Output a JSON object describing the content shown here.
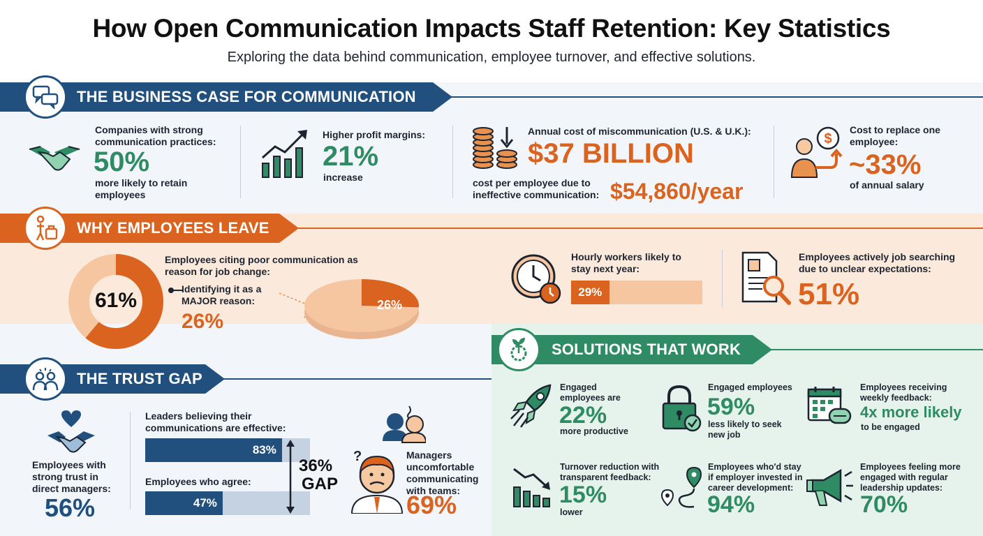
{
  "header": {
    "title": "How Open Communication Impacts Staff Retention: Key Statistics",
    "subtitle": "Exploring the data behind communication, employee turnover, and effective solutions."
  },
  "colors": {
    "navy": "#21507e",
    "orange": "#d9631f",
    "green": "#2e8b64",
    "peach": "#fbeadc",
    "mint": "#e6f3ec"
  },
  "business_case": {
    "heading": "THE BUSINESS CASE FOR COMMUNICATION",
    "icon": "chat-bubbles-icon",
    "retain": {
      "label": "Companies with strong communication practices:",
      "value": "50%",
      "note": "more likely to retain employees",
      "icon": "handshake-icon"
    },
    "profit": {
      "label": "Higher profit margins:",
      "value": "21%",
      "note": "increase",
      "icon": "growth-chart-icon"
    },
    "miscomm": {
      "label": "Annual cost of miscommunication (U.S. & U.K.):",
      "value": "$37 BILLION",
      "per_label": "cost per employee due to ineffective communication:",
      "per_value": "$54,860/year",
      "icon": "coins-down-icon"
    },
    "replace": {
      "label": "Cost to replace one employee:",
      "value": "~33%",
      "note": "of annual salary",
      "icon": "dollar-person-icon"
    }
  },
  "why_leave": {
    "heading": "WHY EMPLOYEES LEAVE",
    "icon": "person-luggage-icon",
    "poor_comm": {
      "label": "Employees citing poor communication as reason for job change:",
      "value": "61%",
      "fraction": 0.61
    },
    "major": {
      "label": "Identifying it as a MAJOR reason:",
      "value": "26%",
      "fraction": 0.26
    },
    "hourly": {
      "label": "Hourly workers likely to stay next year:",
      "value": "29%",
      "fraction": 0.29,
      "icon": "clock-icon"
    },
    "searching": {
      "label": "Employees actively job searching due to unclear expectations:",
      "value": "51%",
      "icon": "document-search-icon"
    }
  },
  "trust_gap": {
    "heading": "THE TRUST GAP",
    "icon": "people-group-icon",
    "trust": {
      "label": "Employees with strong trust in direct managers:",
      "value": "56%",
      "icon": "heart-handshake-icon"
    },
    "leaders": {
      "label": "Leaders believing their communications are effective:",
      "value": "83%",
      "fraction": 0.83
    },
    "agree": {
      "label": "Employees who agree:",
      "value": "47%",
      "fraction": 0.47
    },
    "gap": {
      "value": "36%",
      "label": "GAP"
    },
    "managers": {
      "label": "Managers uncomfortable communicating with teams:",
      "value": "69%",
      "icon": "worried-manager-icon"
    }
  },
  "solutions": {
    "heading": "SOLUTIONS THAT WORK",
    "icon": "plant-gear-icon",
    "items": [
      {
        "label": "Engaged employees are",
        "value": "22%",
        "note": "more productive",
        "icon": "rocket-icon"
      },
      {
        "label": "Engaged employees",
        "value": "59%",
        "note": "less likely to seek new job",
        "icon": "padlock-check-icon"
      },
      {
        "label": "Employees receiving weekly feedback:",
        "value": "4x more likely",
        "note": "to be engaged",
        "icon": "calendar-chat-icon"
      },
      {
        "label": "Turnover reduction with transparent feedback:",
        "value": "15%",
        "note": "lower",
        "icon": "declining-chart-icon"
      },
      {
        "label": "Employees who'd stay if employer invested in career development:",
        "value": "94%",
        "note": "",
        "icon": "map-path-icon"
      },
      {
        "label": "Employees feeling more engaged with regular leadership updates:",
        "value": "70%",
        "note": "",
        "icon": "megaphone-icon"
      }
    ]
  }
}
